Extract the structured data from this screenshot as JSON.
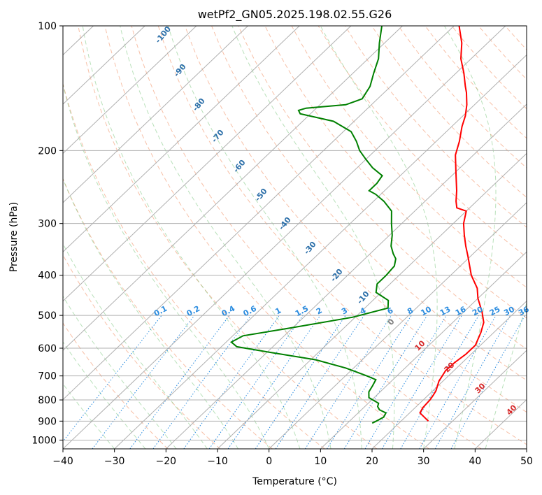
{
  "chart_data": {
    "type": "line",
    "title": "wetPf2_GN05.2025.198.02.55.G26",
    "xlabel": "Temperature (°C)",
    "ylabel": "Pressure (hPa)",
    "xlim": [
      -40,
      50
    ],
    "ylim": [
      1050,
      100
    ],
    "y_scale": "log",
    "grid": true,
    "x_ticks": [
      -40,
      -30,
      -20,
      -10,
      0,
      10,
      20,
      30,
      40,
      50
    ],
    "y_ticks": [
      100,
      200,
      300,
      400,
      500,
      600,
      700,
      800,
      900,
      1000
    ],
    "series": [
      {
        "color": "#ff0000",
        "points": [
          [
            25.3,
            900
          ],
          [
            22,
            860
          ],
          [
            21.5,
            835
          ],
          [
            21.3,
            800
          ],
          [
            21,
            780
          ],
          [
            20.6,
            760
          ],
          [
            19.2,
            720
          ],
          [
            18.4,
            680
          ],
          [
            18.5,
            650
          ],
          [
            19,
            620
          ],
          [
            19,
            590
          ],
          [
            17.5,
            550
          ],
          [
            16,
            520
          ],
          [
            13.5,
            490
          ],
          [
            10,
            455
          ],
          [
            7.8,
            430
          ],
          [
            4,
            400
          ],
          [
            -0.5,
            360
          ],
          [
            -3,
            340
          ],
          [
            -5.5,
            320
          ],
          [
            -8,
            300
          ],
          [
            -10,
            280
          ],
          [
            -12.5,
            275
          ],
          [
            -14,
            265
          ],
          [
            -16,
            250
          ],
          [
            -20,
            225
          ],
          [
            -23.5,
            205
          ],
          [
            -25.5,
            190
          ],
          [
            -28,
            175
          ],
          [
            -29.5,
            165
          ],
          [
            -31.5,
            155
          ],
          [
            -34,
            145
          ],
          [
            -35.5,
            140
          ],
          [
            -38.5,
            130
          ],
          [
            -42,
            120
          ],
          [
            -45,
            110
          ],
          [
            -49,
            100
          ]
        ]
      },
      {
        "color": "#008000",
        "points": [
          [
            14.8,
            910
          ],
          [
            15.2,
            900
          ],
          [
            15.8,
            880
          ],
          [
            15.4,
            860
          ],
          [
            13.5,
            845
          ],
          [
            12.5,
            830
          ],
          [
            12,
            815
          ],
          [
            9,
            790
          ],
          [
            7.8,
            765
          ],
          [
            7.3,
            740
          ],
          [
            6.7,
            715
          ],
          [
            4.2,
            700
          ],
          [
            -1.5,
            670
          ],
          [
            -9,
            640
          ],
          [
            -19,
            615
          ],
          [
            -27,
            595
          ],
          [
            -29,
            580
          ],
          [
            -28,
            560
          ],
          [
            -20,
            535
          ],
          [
            -10.5,
            505
          ],
          [
            -5.5,
            480
          ],
          [
            -7,
            460
          ],
          [
            -11,
            440
          ],
          [
            -12.5,
            420
          ],
          [
            -12.5,
            400
          ],
          [
            -12.8,
            380
          ],
          [
            -14,
            365
          ],
          [
            -15.5,
            355
          ],
          [
            -17.5,
            340
          ],
          [
            -19.5,
            320
          ],
          [
            -22,
            300
          ],
          [
            -24.5,
            280
          ],
          [
            -28,
            265
          ],
          [
            -31,
            255
          ],
          [
            -33,
            250
          ],
          [
            -33,
            240
          ],
          [
            -33.5,
            230
          ],
          [
            -37,
            220
          ],
          [
            -40,
            210
          ],
          [
            -43,
            200
          ],
          [
            -45.5,
            190
          ],
          [
            -48.5,
            180
          ],
          [
            -54,
            170
          ],
          [
            -62,
            163
          ],
          [
            -63,
            160
          ],
          [
            -62,
            158
          ],
          [
            -55,
            155
          ],
          [
            -53,
            150
          ],
          [
            -54,
            140
          ],
          [
            -56,
            130
          ],
          [
            -58,
            120
          ],
          [
            -61,
            110
          ],
          [
            -64,
            100
          ]
        ]
      }
    ],
    "mixing_ratio_labels": [
      "0.1",
      "0.2",
      "0.4",
      "0.6",
      "1",
      "1.5",
      "2",
      "3",
      "4",
      "6",
      "8",
      "10",
      "13",
      "16",
      "20",
      "25",
      "30",
      "36"
    ],
    "dry_adiabat_labels": [
      "-100",
      "-90",
      "-80",
      "-70",
      "-60",
      "-50",
      "-40",
      "-30",
      "-20",
      "-10",
      "0"
    ],
    "moist_adiabat_labels": [
      "10",
      "20",
      "30",
      "40"
    ]
  }
}
